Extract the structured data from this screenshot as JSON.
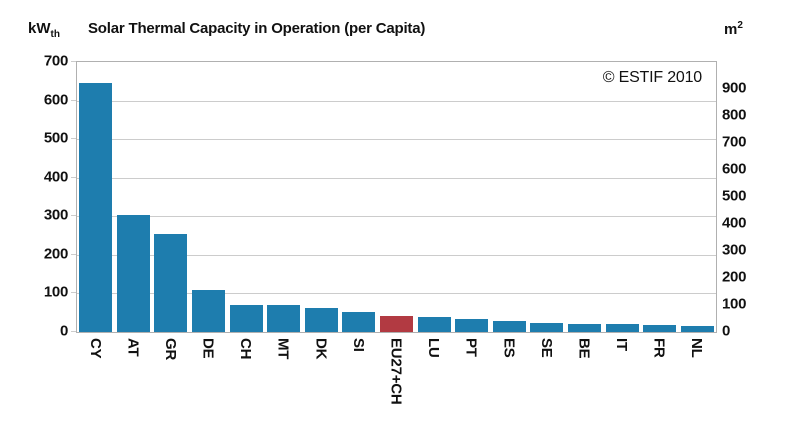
{
  "chart_data": {
    "type": "bar",
    "title": "Solar Thermal Capacity in Operation (per Capita)",
    "annotation": "© ESTIF 2010",
    "categories": [
      "CY",
      "AT",
      "GR",
      "DE",
      "CH",
      "MT",
      "DK",
      "SI",
      "EU27+CH",
      "LU",
      "PT",
      "ES",
      "SE",
      "BE",
      "IT",
      "FR",
      "NL"
    ],
    "values": [
      645,
      303,
      255,
      108,
      71,
      70,
      61,
      53,
      41,
      38,
      33,
      28,
      23,
      22,
      20,
      18,
      16
    ],
    "highlight_category": "EU27+CH",
    "highlight_index": 8,
    "bar_color": "#1E7DAE",
    "highlight_color": "#B23A42",
    "grid": "horizontal",
    "legend": "none",
    "xlabel": "",
    "ylabel_left": "kWth",
    "ylabel_right": "m2",
    "left_axis": {
      "unit_base": "kW",
      "unit_subscript": "th",
      "min": 0,
      "max": 700,
      "tick_step": 100,
      "ticks": [
        0,
        100,
        200,
        300,
        400,
        500,
        600,
        700
      ]
    },
    "right_axis": {
      "unit_base": "m",
      "unit_superscript": "2",
      "min": 0,
      "max": 1000,
      "tick_step": 100,
      "ticks": [
        0,
        100,
        200,
        300,
        400,
        500,
        600,
        700,
        800,
        900
      ]
    }
  }
}
